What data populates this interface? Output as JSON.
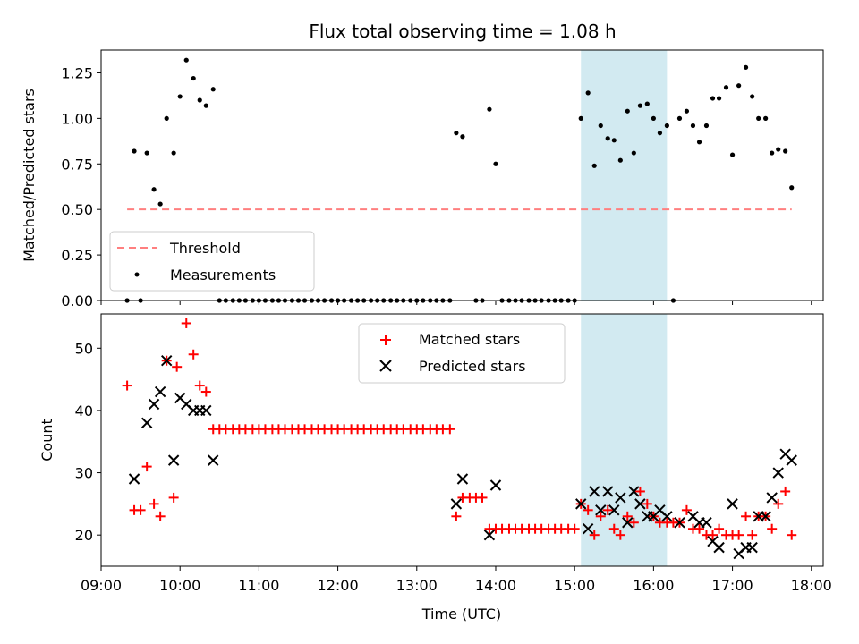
{
  "chart_data": [
    {
      "type": "scatter",
      "title": "Flux total observing time = 1.08 h",
      "xlabel": "",
      "ylabel": "Matched/Predicted stars",
      "xlim": [
        9.0,
        18.15
      ],
      "ylim": [
        0.0,
        1.375
      ],
      "yticks": [
        0.0,
        0.25,
        0.5,
        0.75,
        1.0,
        1.25
      ],
      "ytick_labels": [
        "0.00",
        "0.25",
        "0.50",
        "0.75",
        "1.00",
        "1.25"
      ],
      "highlight_span": [
        15.08,
        16.17
      ],
      "threshold": {
        "name": "Threshold",
        "value": 0.5,
        "x_range": [
          9.33,
          17.75
        ],
        "color": "#ff7f7f"
      },
      "series": [
        {
          "name": "Measurements",
          "color": "#000000",
          "points": [
            [
              9.33,
              0.0
            ],
            [
              9.42,
              0.82
            ],
            [
              9.5,
              0.0
            ],
            [
              9.58,
              0.81
            ],
            [
              9.67,
              0.61
            ],
            [
              9.75,
              0.53
            ],
            [
              9.83,
              1.0
            ],
            [
              9.92,
              0.81
            ],
            [
              10.0,
              1.12
            ],
            [
              10.08,
              1.32
            ],
            [
              10.17,
              1.22
            ],
            [
              10.25,
              1.1
            ],
            [
              10.33,
              1.07
            ],
            [
              10.42,
              1.16
            ],
            [
              10.5,
              0.0
            ],
            [
              10.58,
              0.0
            ],
            [
              10.67,
              0.0
            ],
            [
              10.75,
              0.0
            ],
            [
              10.83,
              0.0
            ],
            [
              10.92,
              0.0
            ],
            [
              11.0,
              0.0
            ],
            [
              11.08,
              0.0
            ],
            [
              11.17,
              0.0
            ],
            [
              11.25,
              0.0
            ],
            [
              11.33,
              0.0
            ],
            [
              11.42,
              0.0
            ],
            [
              11.5,
              0.0
            ],
            [
              11.58,
              0.0
            ],
            [
              11.67,
              0.0
            ],
            [
              11.75,
              0.0
            ],
            [
              11.83,
              0.0
            ],
            [
              11.92,
              0.0
            ],
            [
              12.0,
              0.0
            ],
            [
              12.08,
              0.0
            ],
            [
              12.17,
              0.0
            ],
            [
              12.25,
              0.0
            ],
            [
              12.33,
              0.0
            ],
            [
              12.42,
              0.0
            ],
            [
              12.5,
              0.0
            ],
            [
              12.58,
              0.0
            ],
            [
              12.67,
              0.0
            ],
            [
              12.75,
              0.0
            ],
            [
              12.83,
              0.0
            ],
            [
              12.92,
              0.0
            ],
            [
              13.0,
              0.0
            ],
            [
              13.08,
              0.0
            ],
            [
              13.17,
              0.0
            ],
            [
              13.25,
              0.0
            ],
            [
              13.33,
              0.0
            ],
            [
              13.42,
              0.0
            ],
            [
              13.5,
              0.92
            ],
            [
              13.58,
              0.9
            ],
            [
              13.75,
              0.0
            ],
            [
              13.83,
              0.0
            ],
            [
              13.92,
              1.05
            ],
            [
              14.0,
              0.75
            ],
            [
              14.08,
              0.0
            ],
            [
              14.17,
              0.0
            ],
            [
              14.25,
              0.0
            ],
            [
              14.33,
              0.0
            ],
            [
              14.42,
              0.0
            ],
            [
              14.5,
              0.0
            ],
            [
              14.58,
              0.0
            ],
            [
              14.67,
              0.0
            ],
            [
              14.75,
              0.0
            ],
            [
              14.83,
              0.0
            ],
            [
              14.92,
              0.0
            ],
            [
              15.0,
              0.0
            ],
            [
              15.08,
              1.0
            ],
            [
              15.17,
              1.14
            ],
            [
              15.25,
              0.74
            ],
            [
              15.33,
              0.96
            ],
            [
              15.42,
              0.89
            ],
            [
              15.5,
              0.88
            ],
            [
              15.58,
              0.77
            ],
            [
              15.67,
              1.04
            ],
            [
              15.75,
              0.81
            ],
            [
              15.83,
              1.07
            ],
            [
              15.92,
              1.08
            ],
            [
              16.0,
              1.0
            ],
            [
              16.08,
              0.92
            ],
            [
              16.17,
              0.96
            ],
            [
              16.25,
              0.0
            ],
            [
              16.33,
              1.0
            ],
            [
              16.42,
              1.04
            ],
            [
              16.5,
              0.96
            ],
            [
              16.58,
              0.87
            ],
            [
              16.67,
              0.96
            ],
            [
              16.75,
              1.11
            ],
            [
              16.83,
              1.11
            ],
            [
              16.92,
              1.17
            ],
            [
              17.0,
              0.8
            ],
            [
              17.08,
              1.18
            ],
            [
              17.17,
              1.28
            ],
            [
              17.25,
              1.12
            ],
            [
              17.33,
              1.0
            ],
            [
              17.42,
              1.0
            ],
            [
              17.5,
              0.81
            ],
            [
              17.58,
              0.83
            ],
            [
              17.67,
              0.82
            ],
            [
              17.75,
              0.62
            ]
          ]
        }
      ],
      "legend": {
        "position": "lower left",
        "entries": [
          "Threshold",
          "Measurements"
        ]
      }
    },
    {
      "type": "scatter",
      "title": "",
      "xlabel": "Time (UTC)",
      "ylabel": "Count",
      "xlim": [
        9.0,
        18.15
      ],
      "ylim": [
        15.0,
        55.5
      ],
      "yticks": [
        20,
        30,
        40,
        50
      ],
      "ytick_labels": [
        "20",
        "30",
        "40",
        "50"
      ],
      "xticks": [
        9,
        10,
        11,
        12,
        13,
        14,
        15,
        16,
        17,
        18
      ],
      "xtick_labels": [
        "09:00",
        "10:00",
        "11:00",
        "12:00",
        "13:00",
        "14:00",
        "15:00",
        "16:00",
        "17:00",
        "18:00"
      ],
      "highlight_span": [
        15.08,
        16.17
      ],
      "series": [
        {
          "name": "Matched stars",
          "marker": "plus",
          "color": "#ff0000",
          "points": [
            [
              9.33,
              44
            ],
            [
              9.42,
              24
            ],
            [
              9.5,
              24
            ],
            [
              9.58,
              31
            ],
            [
              9.67,
              25
            ],
            [
              9.75,
              23
            ],
            [
              9.83,
              48
            ],
            [
              9.92,
              26
            ],
            [
              9.96,
              47
            ],
            [
              10.08,
              54
            ],
            [
              10.17,
              49
            ],
            [
              10.25,
              44
            ],
            [
              10.33,
              43
            ],
            [
              10.42,
              37
            ],
            [
              10.5,
              37
            ],
            [
              10.58,
              37
            ],
            [
              10.67,
              37
            ],
            [
              10.75,
              37
            ],
            [
              10.83,
              37
            ],
            [
              10.92,
              37
            ],
            [
              11.0,
              37
            ],
            [
              11.08,
              37
            ],
            [
              11.17,
              37
            ],
            [
              11.25,
              37
            ],
            [
              11.33,
              37
            ],
            [
              11.42,
              37
            ],
            [
              11.5,
              37
            ],
            [
              11.58,
              37
            ],
            [
              11.67,
              37
            ],
            [
              11.75,
              37
            ],
            [
              11.83,
              37
            ],
            [
              11.92,
              37
            ],
            [
              12.0,
              37
            ],
            [
              12.08,
              37
            ],
            [
              12.17,
              37
            ],
            [
              12.25,
              37
            ],
            [
              12.33,
              37
            ],
            [
              12.42,
              37
            ],
            [
              12.5,
              37
            ],
            [
              12.58,
              37
            ],
            [
              12.67,
              37
            ],
            [
              12.75,
              37
            ],
            [
              12.83,
              37
            ],
            [
              12.92,
              37
            ],
            [
              13.0,
              37
            ],
            [
              13.08,
              37
            ],
            [
              13.17,
              37
            ],
            [
              13.25,
              37
            ],
            [
              13.33,
              37
            ],
            [
              13.42,
              37
            ],
            [
              13.5,
              23
            ],
            [
              13.58,
              26
            ],
            [
              13.67,
              26
            ],
            [
              13.75,
              26
            ],
            [
              13.83,
              26
            ],
            [
              13.92,
              21
            ],
            [
              14.0,
              21
            ],
            [
              14.08,
              21
            ],
            [
              14.17,
              21
            ],
            [
              14.25,
              21
            ],
            [
              14.33,
              21
            ],
            [
              14.42,
              21
            ],
            [
              14.5,
              21
            ],
            [
              14.58,
              21
            ],
            [
              14.67,
              21
            ],
            [
              14.75,
              21
            ],
            [
              14.83,
              21
            ],
            [
              14.92,
              21
            ],
            [
              15.0,
              21
            ],
            [
              15.08,
              25
            ],
            [
              15.17,
              24
            ],
            [
              15.25,
              20
            ],
            [
              15.33,
              23
            ],
            [
              15.42,
              24
            ],
            [
              15.5,
              21
            ],
            [
              15.58,
              20
            ],
            [
              15.67,
              23
            ],
            [
              15.75,
              22
            ],
            [
              15.83,
              27
            ],
            [
              15.92,
              25
            ],
            [
              16.0,
              23
            ],
            [
              16.08,
              22
            ],
            [
              16.17,
              22
            ],
            [
              16.25,
              22
            ],
            [
              16.33,
              22
            ],
            [
              16.42,
              24
            ],
            [
              16.5,
              21
            ],
            [
              16.58,
              21
            ],
            [
              16.67,
              20
            ],
            [
              16.75,
              20
            ],
            [
              16.83,
              21
            ],
            [
              16.92,
              20
            ],
            [
              17.0,
              20
            ],
            [
              17.08,
              20
            ],
            [
              17.17,
              23
            ],
            [
              17.25,
              20
            ],
            [
              17.33,
              23
            ],
            [
              17.42,
              23
            ],
            [
              17.5,
              21
            ],
            [
              17.58,
              25
            ],
            [
              17.67,
              27
            ],
            [
              17.75,
              20
            ]
          ]
        },
        {
          "name": "Predicted stars",
          "marker": "x",
          "color": "#000000",
          "points": [
            [
              9.42,
              29
            ],
            [
              9.58,
              38
            ],
            [
              9.67,
              41
            ],
            [
              9.75,
              43
            ],
            [
              9.83,
              48
            ],
            [
              9.92,
              32
            ],
            [
              10.0,
              42
            ],
            [
              10.08,
              41
            ],
            [
              10.17,
              40
            ],
            [
              10.25,
              40
            ],
            [
              10.33,
              40
            ],
            [
              10.42,
              32
            ],
            [
              13.5,
              25
            ],
            [
              13.58,
              29
            ],
            [
              13.92,
              20
            ],
            [
              14.0,
              28
            ],
            [
              15.08,
              25
            ],
            [
              15.17,
              21
            ],
            [
              15.25,
              27
            ],
            [
              15.33,
              24
            ],
            [
              15.42,
              27
            ],
            [
              15.5,
              24
            ],
            [
              15.58,
              26
            ],
            [
              15.67,
              22
            ],
            [
              15.75,
              27
            ],
            [
              15.83,
              25
            ],
            [
              15.92,
              23
            ],
            [
              16.0,
              23
            ],
            [
              16.08,
              24
            ],
            [
              16.17,
              23
            ],
            [
              16.33,
              22
            ],
            [
              16.5,
              23
            ],
            [
              16.58,
              22
            ],
            [
              16.67,
              22
            ],
            [
              16.75,
              19
            ],
            [
              16.83,
              18
            ],
            [
              17.0,
              25
            ],
            [
              17.08,
              17
            ],
            [
              17.17,
              18
            ],
            [
              17.25,
              18
            ],
            [
              17.33,
              23
            ],
            [
              17.42,
              23
            ],
            [
              17.5,
              26
            ],
            [
              17.58,
              30
            ],
            [
              17.67,
              33
            ],
            [
              17.75,
              32
            ]
          ]
        }
      ],
      "legend": {
        "position": "upper center",
        "entries": [
          "Matched stars",
          "Predicted stars"
        ]
      }
    }
  ]
}
